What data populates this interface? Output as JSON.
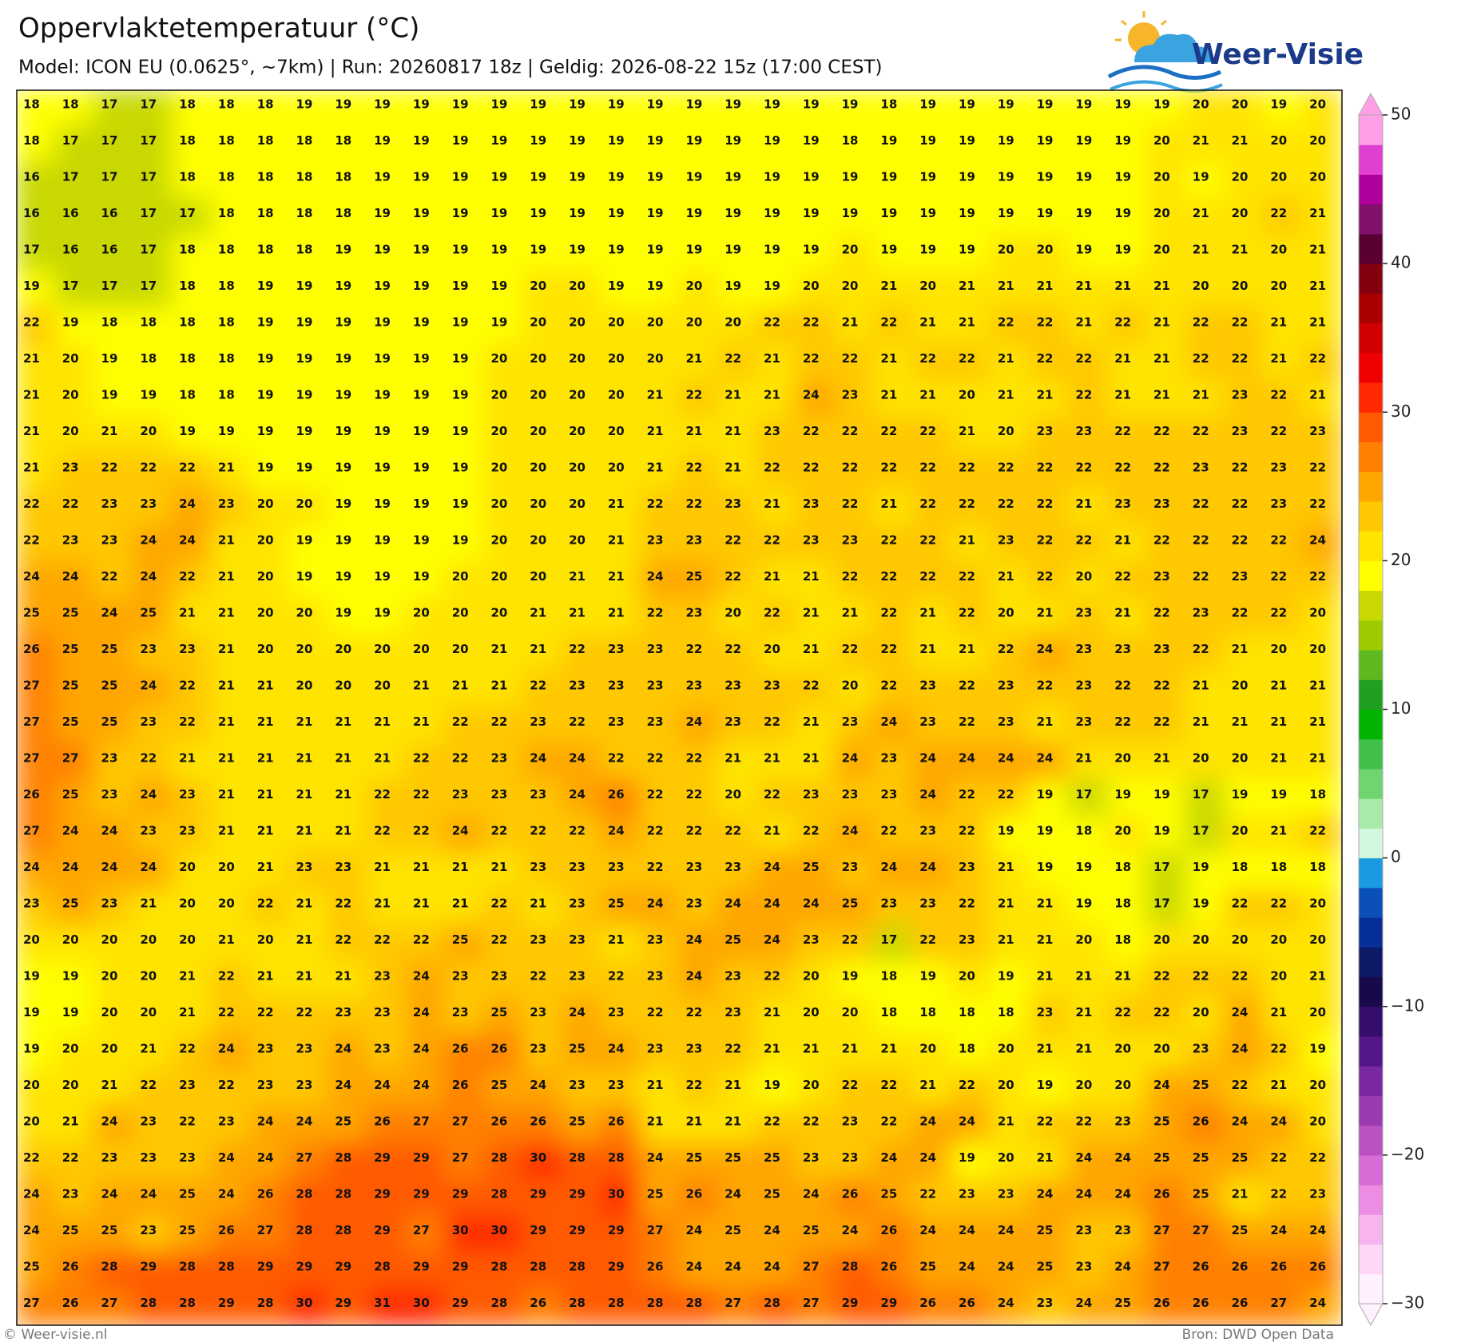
{
  "header": {
    "title": "Oppervlaktetemperatuur (°C)",
    "subtitle": "Model: ICON EU (0.0625°, ~7km)  |  Run: 20260817 18z  |  Geldig: 2026-08-22 15z (17:00 CEST)"
  },
  "logo": {
    "text": "Weer-Visie"
  },
  "map": {
    "rows": [
      [
        18,
        18,
        17,
        17,
        18,
        18,
        18,
        19,
        19,
        19,
        19,
        19,
        19,
        19,
        19,
        19,
        19,
        19,
        19,
        19,
        19,
        19,
        18,
        19,
        19,
        19,
        19,
        19,
        19,
        19,
        20,
        20,
        19,
        20
      ],
      [
        18,
        17,
        17,
        17,
        18,
        18,
        18,
        18,
        18,
        19,
        19,
        19,
        19,
        19,
        19,
        19,
        19,
        19,
        19,
        19,
        19,
        18,
        19,
        19,
        19,
        19,
        19,
        19,
        19,
        20,
        21,
        21,
        20,
        20
      ],
      [
        16,
        17,
        17,
        17,
        18,
        18,
        18,
        18,
        18,
        19,
        19,
        19,
        19,
        19,
        19,
        19,
        19,
        19,
        19,
        19,
        19,
        19,
        19,
        19,
        19,
        19,
        19,
        19,
        19,
        20,
        19,
        20,
        20,
        20
      ],
      [
        16,
        16,
        16,
        17,
        17,
        18,
        18,
        18,
        18,
        19,
        19,
        19,
        19,
        19,
        19,
        19,
        19,
        19,
        19,
        19,
        19,
        19,
        19,
        19,
        19,
        19,
        19,
        19,
        19,
        20,
        21,
        20,
        22,
        21
      ],
      [
        17,
        16,
        16,
        17,
        18,
        18,
        18,
        18,
        19,
        19,
        19,
        19,
        19,
        19,
        19,
        19,
        19,
        19,
        19,
        19,
        19,
        20,
        19,
        19,
        19,
        20,
        20,
        19,
        19,
        20,
        21,
        21,
        20,
        21
      ],
      [
        19,
        17,
        17,
        17,
        18,
        18,
        19,
        19,
        19,
        19,
        19,
        19,
        19,
        20,
        20,
        19,
        19,
        20,
        19,
        19,
        20,
        20,
        21,
        20,
        21,
        21,
        21,
        21,
        21,
        21,
        20,
        20,
        20,
        21
      ],
      [
        22,
        19,
        18,
        18,
        18,
        18,
        19,
        19,
        19,
        19,
        19,
        19,
        19,
        20,
        20,
        20,
        20,
        20,
        20,
        22,
        22,
        21,
        22,
        21,
        21,
        22,
        22,
        21,
        22,
        21,
        22,
        22,
        21,
        21
      ],
      [
        21,
        20,
        19,
        18,
        18,
        18,
        19,
        19,
        19,
        19,
        19,
        19,
        20,
        20,
        20,
        20,
        20,
        21,
        22,
        21,
        22,
        22,
        21,
        22,
        22,
        21,
        22,
        22,
        21,
        21,
        22,
        22,
        21,
        22
      ],
      [
        21,
        20,
        19,
        19,
        18,
        18,
        19,
        19,
        19,
        19,
        19,
        19,
        20,
        20,
        20,
        20,
        21,
        22,
        21,
        21,
        24,
        23,
        21,
        21,
        20,
        21,
        21,
        22,
        21,
        21,
        21,
        23,
        22,
        21
      ],
      [
        21,
        20,
        21,
        20,
        19,
        19,
        19,
        19,
        19,
        19,
        19,
        19,
        20,
        20,
        20,
        20,
        21,
        21,
        21,
        23,
        22,
        22,
        22,
        22,
        21,
        20,
        23,
        23,
        22,
        22,
        22,
        23,
        22,
        23
      ],
      [
        21,
        23,
        22,
        22,
        22,
        21,
        19,
        19,
        19,
        19,
        19,
        19,
        20,
        20,
        20,
        20,
        21,
        22,
        21,
        22,
        22,
        22,
        22,
        22,
        22,
        22,
        22,
        22,
        22,
        22,
        23,
        22,
        23,
        22
      ],
      [
        22,
        22,
        23,
        23,
        24,
        23,
        20,
        20,
        19,
        19,
        19,
        19,
        20,
        20,
        20,
        21,
        22,
        22,
        23,
        21,
        23,
        22,
        21,
        22,
        22,
        22,
        22,
        21,
        23,
        23,
        22,
        22,
        23,
        22
      ],
      [
        22,
        23,
        23,
        24,
        24,
        21,
        20,
        19,
        19,
        19,
        19,
        19,
        20,
        20,
        20,
        21,
        23,
        23,
        22,
        22,
        23,
        23,
        22,
        22,
        21,
        23,
        22,
        22,
        21,
        22,
        22,
        22,
        22,
        24
      ],
      [
        24,
        24,
        22,
        24,
        22,
        21,
        20,
        19,
        19,
        19,
        19,
        20,
        20,
        20,
        21,
        21,
        24,
        25,
        22,
        21,
        21,
        22,
        22,
        22,
        22,
        21,
        22,
        20,
        22,
        23,
        22,
        23,
        22,
        22
      ],
      [
        25,
        25,
        24,
        25,
        21,
        21,
        20,
        20,
        19,
        19,
        20,
        20,
        20,
        21,
        21,
        21,
        22,
        23,
        20,
        22,
        21,
        21,
        22,
        21,
        22,
        20,
        21,
        23,
        21,
        22,
        23,
        22,
        22,
        20
      ],
      [
        26,
        25,
        25,
        23,
        23,
        21,
        20,
        20,
        20,
        20,
        20,
        20,
        21,
        21,
        22,
        23,
        23,
        22,
        22,
        20,
        21,
        22,
        22,
        21,
        21,
        22,
        24,
        23,
        23,
        23,
        22,
        21,
        20,
        20
      ],
      [
        27,
        25,
        25,
        24,
        22,
        21,
        21,
        20,
        20,
        20,
        21,
        21,
        21,
        22,
        23,
        23,
        23,
        23,
        23,
        23,
        22,
        20,
        22,
        23,
        22,
        23,
        22,
        23,
        22,
        22,
        21,
        20,
        21,
        21
      ],
      [
        27,
        25,
        25,
        23,
        22,
        21,
        21,
        21,
        21,
        21,
        21,
        22,
        22,
        23,
        22,
        23,
        23,
        24,
        23,
        22,
        21,
        23,
        24,
        23,
        22,
        23,
        21,
        23,
        22,
        22,
        21,
        21,
        21,
        21
      ],
      [
        27,
        27,
        23,
        22,
        21,
        21,
        21,
        21,
        21,
        21,
        22,
        22,
        23,
        24,
        24,
        22,
        22,
        22,
        21,
        21,
        21,
        24,
        23,
        24,
        24,
        24,
        24,
        21,
        20,
        21,
        20,
        20,
        21,
        21
      ],
      [
        26,
        25,
        23,
        24,
        23,
        21,
        21,
        21,
        21,
        22,
        22,
        23,
        23,
        23,
        24,
        26,
        22,
        22,
        20,
        22,
        23,
        23,
        23,
        24,
        22,
        22,
        19,
        17,
        19,
        19,
        17,
        19,
        19,
        18
      ],
      [
        27,
        24,
        24,
        23,
        23,
        21,
        21,
        21,
        21,
        22,
        22,
        24,
        22,
        22,
        22,
        24,
        22,
        22,
        22,
        21,
        22,
        24,
        22,
        23,
        22,
        19,
        19,
        18,
        20,
        19,
        17,
        20,
        21,
        22
      ],
      [
        24,
        24,
        24,
        24,
        20,
        20,
        21,
        23,
        23,
        21,
        21,
        21,
        21,
        23,
        23,
        23,
        22,
        23,
        23,
        24,
        25,
        23,
        24,
        24,
        23,
        21,
        19,
        19,
        18,
        17,
        19,
        18,
        18,
        18
      ],
      [
        23,
        25,
        23,
        21,
        20,
        20,
        22,
        21,
        22,
        21,
        21,
        21,
        22,
        21,
        23,
        25,
        24,
        23,
        24,
        24,
        24,
        25,
        23,
        23,
        22,
        21,
        21,
        19,
        18,
        17,
        19,
        22,
        22,
        20
      ],
      [
        20,
        20,
        20,
        20,
        20,
        21,
        20,
        21,
        22,
        22,
        22,
        25,
        22,
        23,
        23,
        21,
        23,
        24,
        25,
        24,
        23,
        22,
        17,
        22,
        23,
        21,
        21,
        20,
        18,
        20,
        20,
        20,
        20,
        20
      ],
      [
        19,
        19,
        20,
        20,
        21,
        22,
        21,
        21,
        21,
        23,
        24,
        23,
        23,
        22,
        23,
        22,
        23,
        24,
        23,
        22,
        20,
        19,
        18,
        19,
        20,
        19,
        21,
        21,
        21,
        22,
        22,
        22,
        20,
        21
      ],
      [
        19,
        19,
        20,
        20,
        21,
        22,
        22,
        22,
        23,
        23,
        24,
        23,
        25,
        23,
        24,
        23,
        22,
        22,
        23,
        21,
        20,
        20,
        18,
        18,
        18,
        18,
        23,
        21,
        22,
        22,
        20,
        24,
        21,
        20
      ],
      [
        19,
        20,
        20,
        21,
        22,
        24,
        23,
        23,
        24,
        23,
        24,
        26,
        26,
        23,
        25,
        24,
        23,
        23,
        22,
        21,
        21,
        21,
        21,
        20,
        18,
        20,
        21,
        21,
        20,
        20,
        23,
        24,
        22,
        19
      ],
      [
        20,
        20,
        21,
        22,
        23,
        22,
        23,
        23,
        24,
        24,
        24,
        26,
        25,
        24,
        23,
        23,
        21,
        22,
        21,
        19,
        20,
        22,
        22,
        21,
        22,
        20,
        19,
        20,
        20,
        24,
        25,
        22,
        21,
        20
      ],
      [
        20,
        21,
        24,
        23,
        22,
        23,
        24,
        24,
        25,
        26,
        27,
        27,
        26,
        26,
        25,
        26,
        21,
        21,
        21,
        22,
        22,
        23,
        22,
        24,
        24,
        21,
        22,
        22,
        23,
        25,
        26,
        24,
        24,
        20
      ],
      [
        22,
        22,
        23,
        23,
        23,
        24,
        24,
        27,
        28,
        29,
        29,
        27,
        28,
        30,
        28,
        28,
        24,
        25,
        25,
        25,
        23,
        23,
        24,
        24,
        19,
        20,
        21,
        24,
        24,
        25,
        25,
        25,
        22,
        22
      ],
      [
        24,
        23,
        24,
        24,
        25,
        24,
        26,
        28,
        28,
        29,
        29,
        29,
        28,
        29,
        29,
        30,
        25,
        26,
        24,
        25,
        24,
        26,
        25,
        22,
        23,
        23,
        24,
        24,
        24,
        26,
        25,
        21,
        22,
        23
      ],
      [
        24,
        25,
        25,
        23,
        25,
        26,
        27,
        28,
        28,
        29,
        27,
        30,
        30,
        29,
        29,
        29,
        27,
        24,
        25,
        24,
        25,
        24,
        26,
        24,
        24,
        24,
        25,
        23,
        23,
        27,
        27,
        25,
        24,
        24
      ],
      [
        25,
        26,
        28,
        29,
        28,
        28,
        29,
        29,
        29,
        28,
        29,
        29,
        28,
        28,
        28,
        29,
        26,
        24,
        24,
        24,
        27,
        28,
        26,
        25,
        24,
        24,
        25,
        23,
        24,
        27,
        26,
        26,
        26,
        26
      ],
      [
        27,
        26,
        27,
        28,
        28,
        29,
        28,
        30,
        29,
        31,
        30,
        29,
        28,
        26,
        28,
        28,
        28,
        28,
        27,
        28,
        27,
        29,
        29,
        26,
        26,
        24,
        23,
        24,
        25,
        26,
        26,
        26,
        27,
        24
      ]
    ]
  },
  "colorbar": {
    "lim": [
      -30,
      50
    ],
    "ticks": [
      50,
      40,
      30,
      20,
      10,
      0,
      {
        "value": -10,
        "label": "−10"
      },
      {
        "value": -20,
        "label": "−20"
      },
      {
        "value": -30,
        "label": "−30"
      }
    ],
    "colors": [
      "#fef0fc",
      "#fcd8f6",
      "#f7b4ee",
      "#ec8ce3",
      "#d86cd6",
      "#bb52c2",
      "#9a3cb0",
      "#7a28a0",
      "#55168a",
      "#350e6c",
      "#180a4a",
      "#0c1a66",
      "#062f98",
      "#0a50b8",
      "#1a9ae0",
      "#d4f7e0",
      "#a8eaa8",
      "#70d470",
      "#40c048",
      "#00b400",
      "#20a020",
      "#60b820",
      "#9ccc00",
      "#c8d800",
      "#ffff00",
      "#ffe400",
      "#ffc800",
      "#ffa600",
      "#ff8000",
      "#ff5a00",
      "#ff2800",
      "#f00000",
      "#d00000",
      "#aa0000",
      "#820010",
      "#5a0030",
      "#80106a",
      "#b0009c",
      "#e040d0",
      "#ffa0e6"
    ]
  },
  "footer": {
    "left": "© Weer-visie.nl",
    "right": "Bron: DWD Open Data"
  }
}
